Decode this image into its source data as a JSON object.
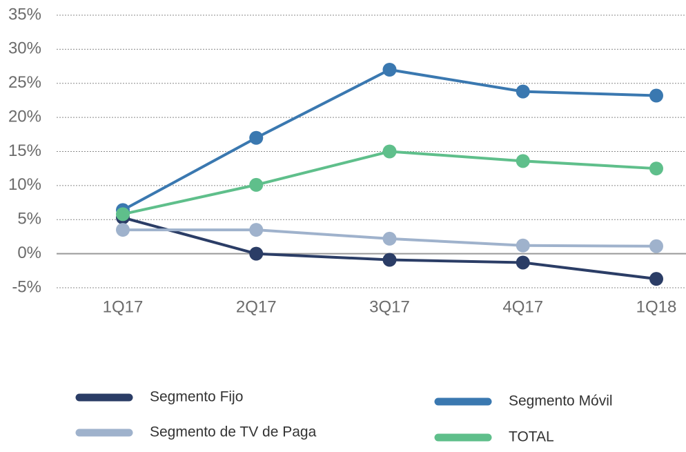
{
  "chart_data": {
    "type": "line",
    "categories": [
      "1Q17",
      "2Q17",
      "3Q17",
      "4Q17",
      "1Q18"
    ],
    "series": [
      {
        "name": "Segmento Fijo",
        "color": "#2b3d66",
        "values": [
          5.3,
          0,
          -0.9,
          -1.3,
          -3.7
        ]
      },
      {
        "name": "Segmento Móvil",
        "color": "#3a78b0",
        "values": [
          6.4,
          17,
          27,
          23.8,
          23.2
        ]
      },
      {
        "name": "Segmento de TV de Paga",
        "color": "#9fb2cc",
        "values": [
          3.5,
          3.5,
          2.2,
          1.2,
          1.1
        ]
      },
      {
        "name": "TOTAL",
        "color": "#5fbf8b",
        "values": [
          5.8,
          10.1,
          15,
          13.6,
          12.5
        ]
      }
    ],
    "ylim": [
      -5,
      35
    ],
    "yticks": [
      {
        "value": -5,
        "label": "-5%"
      },
      {
        "value": 0,
        "label": "0%"
      },
      {
        "value": 5,
        "label": "5%"
      },
      {
        "value": 10,
        "label": "10%"
      },
      {
        "value": 15,
        "label": "15%"
      },
      {
        "value": 20,
        "label": "20%"
      },
      {
        "value": 25,
        "label": "25%"
      },
      {
        "value": 30,
        "label": "30%"
      },
      {
        "value": 35,
        "label": "35%"
      }
    ],
    "grid": true
  }
}
